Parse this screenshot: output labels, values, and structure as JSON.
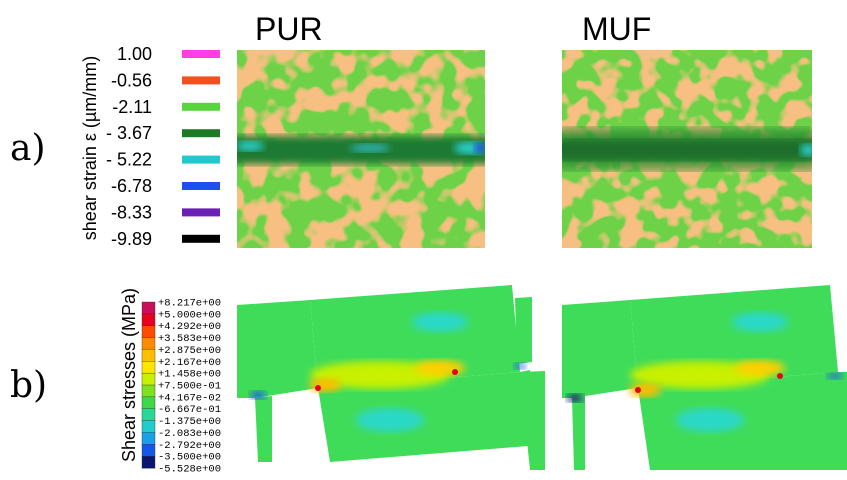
{
  "panel_a": {
    "label": "a)",
    "axis_label": "shear strain ε (µm/mm)",
    "legend": [
      {
        "label": "1.00",
        "color": "#ff3ee8"
      },
      {
        "label": "-0.56",
        "color": "#f2501e"
      },
      {
        "label": "-2.11",
        "color": "#57d53c"
      },
      {
        "label": "- 3.67",
        "color": "#1d7a24"
      },
      {
        "label": "- 5.22",
        "color": "#22c9cc"
      },
      {
        "label": "-6.78",
        "color": "#1f4ff0"
      },
      {
        "label": "-8.33",
        "color": "#6a20b4"
      },
      {
        "label": "-9.89",
        "color": "#000000"
      }
    ]
  },
  "columns": [
    "PUR",
    "MUF"
  ],
  "panel_b": {
    "label": "b)",
    "axis_label": "Shear stresses (MPa)",
    "colorbar": {
      "labels": [
        "+8.217e+00",
        "+5.000e+00",
        "+4.292e+00",
        "+3.583e+00",
        "+2.875e+00",
        "+2.167e+00",
        "+1.458e+00",
        "+7.500e-01",
        "+4.167e-02",
        "-6.667e-01",
        "-1.375e+00",
        "-2.083e+00",
        "-2.792e+00",
        "-3.500e+00",
        "-5.528e+00"
      ],
      "colors": [
        "#c8105a",
        "#e8001c",
        "#ff4a00",
        "#ff8a00",
        "#ffbe00",
        "#ffe600",
        "#c8f000",
        "#7ee21e",
        "#3ed84a",
        "#28d896",
        "#22cccc",
        "#1aa0e6",
        "#1458e8",
        "#0b1670"
      ]
    }
  }
}
